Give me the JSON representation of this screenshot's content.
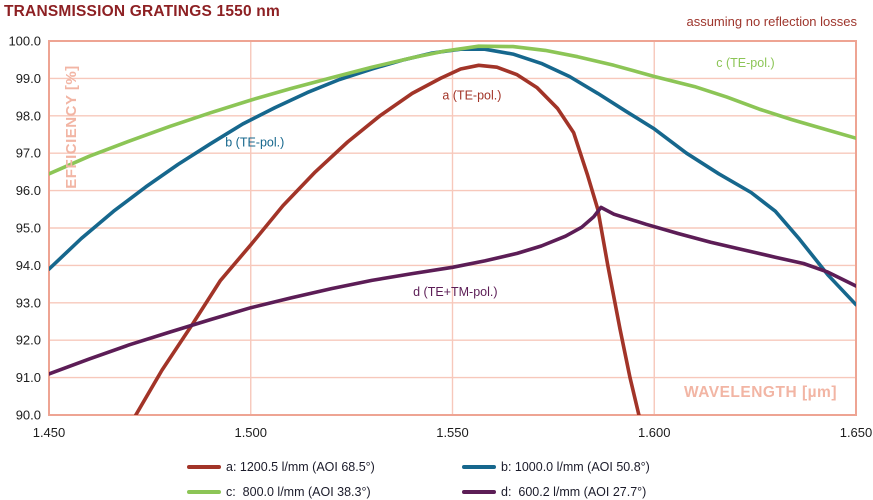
{
  "header": {
    "title": "TRANSMISSION GRATINGS 1550 nm",
    "subtitle": "assuming no reflection losses"
  },
  "chart_data": {
    "type": "line",
    "title": "TRANSMISSION GRATINGS 1550 nm",
    "subtitle": "assuming no reflection losses",
    "xlabel": "WAVELENGTH [µm]",
    "ylabel": "EFFICIENCY [%]",
    "xlim": [
      1.45,
      1.65
    ],
    "ylim": [
      90.0,
      100.0
    ],
    "xticks": [
      1.45,
      1.5,
      1.55,
      1.6,
      1.65
    ],
    "xtick_labels": [
      "1.450",
      "1.500",
      "1.550",
      "1.600",
      "1.650"
    ],
    "yticks": [
      90,
      91,
      92,
      93,
      94,
      95,
      96,
      97,
      98,
      99,
      100
    ],
    "ytick_labels": [
      "90.0",
      "91.0",
      "92.0",
      "93.0",
      "94.0",
      "95.0",
      "96.0",
      "97.0",
      "98.0",
      "99.0",
      "100.0"
    ],
    "grid": true,
    "legend_position": "bottom",
    "colors": {
      "plot_border": "#eea493",
      "grid": "#f7c8bb",
      "tick_text": "#1d1d1d",
      "axis_title": "#f2b5a4"
    },
    "series": [
      {
        "id": "a",
        "name": "a: 1200.5 l/mm (AOI 68.5°)",
        "curve_label": "a (TE-pol.)",
        "color": "#a23428",
        "label_pos": [
          1.5548,
          98.55
        ],
        "points": [
          [
            1.4715,
            90.0
          ],
          [
            1.478,
            91.2
          ],
          [
            1.4857,
            92.45
          ],
          [
            1.4925,
            93.6
          ],
          [
            1.5,
            94.55
          ],
          [
            1.508,
            95.6
          ],
          [
            1.516,
            96.5
          ],
          [
            1.524,
            97.3
          ],
          [
            1.532,
            98.0
          ],
          [
            1.54,
            98.6
          ],
          [
            1.547,
            99.0
          ],
          [
            1.552,
            99.25
          ],
          [
            1.5565,
            99.35
          ],
          [
            1.561,
            99.3
          ],
          [
            1.566,
            99.1
          ],
          [
            1.571,
            98.75
          ],
          [
            1.576,
            98.2
          ],
          [
            1.58,
            97.55
          ],
          [
            1.5835,
            96.4
          ],
          [
            1.586,
            95.5
          ],
          [
            1.5885,
            94.0
          ],
          [
            1.5915,
            92.3
          ],
          [
            1.594,
            91.0
          ],
          [
            1.5962,
            90.0
          ],
          [
            1.597,
            89.4
          ]
        ]
      },
      {
        "id": "b",
        "name": "b: 1000.0 l/mm (AOI 50.8°)",
        "curve_label": "b (TE-pol.)",
        "color": "#16678d",
        "label_pos": [
          1.501,
          97.3
        ],
        "points": [
          [
            1.45,
            93.9
          ],
          [
            1.458,
            94.72
          ],
          [
            1.466,
            95.45
          ],
          [
            1.474,
            96.1
          ],
          [
            1.482,
            96.7
          ],
          [
            1.49,
            97.25
          ],
          [
            1.498,
            97.78
          ],
          [
            1.506,
            98.22
          ],
          [
            1.514,
            98.62
          ],
          [
            1.522,
            98.97
          ],
          [
            1.53,
            99.25
          ],
          [
            1.538,
            99.5
          ],
          [
            1.545,
            99.68
          ],
          [
            1.552,
            99.78
          ],
          [
            1.558,
            99.78
          ],
          [
            1.565,
            99.65
          ],
          [
            1.572,
            99.4
          ],
          [
            1.579,
            99.05
          ],
          [
            1.586,
            98.6
          ],
          [
            1.593,
            98.12
          ],
          [
            1.6,
            97.65
          ],
          [
            1.608,
            97.0
          ],
          [
            1.616,
            96.45
          ],
          [
            1.624,
            95.95
          ],
          [
            1.63,
            95.45
          ],
          [
            1.636,
            94.7
          ],
          [
            1.643,
            93.75
          ],
          [
            1.65,
            92.95
          ]
        ]
      },
      {
        "id": "c",
        "name": "c:  800.0 l/mm (AOI 38.3°)",
        "curve_label": "c (TE-pol.)",
        "color": "#8cc556",
        "label_pos": [
          1.6226,
          99.42
        ],
        "points": [
          [
            1.45,
            96.45
          ],
          [
            1.46,
            96.92
          ],
          [
            1.47,
            97.33
          ],
          [
            1.48,
            97.72
          ],
          [
            1.49,
            98.08
          ],
          [
            1.5,
            98.42
          ],
          [
            1.51,
            98.73
          ],
          [
            1.52,
            99.02
          ],
          [
            1.53,
            99.3
          ],
          [
            1.54,
            99.55
          ],
          [
            1.548,
            99.73
          ],
          [
            1.5565,
            99.86
          ],
          [
            1.565,
            99.85
          ],
          [
            1.573,
            99.75
          ],
          [
            1.581,
            99.58
          ],
          [
            1.59,
            99.35
          ],
          [
            1.6,
            99.05
          ],
          [
            1.61,
            98.78
          ],
          [
            1.618,
            98.5
          ],
          [
            1.626,
            98.18
          ],
          [
            1.634,
            97.9
          ],
          [
            1.642,
            97.65
          ],
          [
            1.65,
            97.4
          ]
        ]
      },
      {
        "id": "d",
        "name": "d:  600.2 l/mm (AOI 27.7°)",
        "curve_label": "d (TE+TM-pol.)",
        "color": "#5c1d56",
        "label_pos": [
          1.5507,
          93.3
        ],
        "points": [
          [
            1.45,
            91.1
          ],
          [
            1.46,
            91.5
          ],
          [
            1.47,
            91.88
          ],
          [
            1.48,
            92.22
          ],
          [
            1.49,
            92.55
          ],
          [
            1.5,
            92.87
          ],
          [
            1.51,
            93.13
          ],
          [
            1.52,
            93.38
          ],
          [
            1.53,
            93.6
          ],
          [
            1.54,
            93.78
          ],
          [
            1.55,
            93.95
          ],
          [
            1.558,
            94.12
          ],
          [
            1.566,
            94.32
          ],
          [
            1.572,
            94.52
          ],
          [
            1.578,
            94.78
          ],
          [
            1.582,
            95.02
          ],
          [
            1.585,
            95.3
          ],
          [
            1.5868,
            95.55
          ],
          [
            1.59,
            95.37
          ],
          [
            1.598,
            95.1
          ],
          [
            1.606,
            94.85
          ],
          [
            1.614,
            94.62
          ],
          [
            1.622,
            94.42
          ],
          [
            1.63,
            94.22
          ],
          [
            1.637,
            94.05
          ],
          [
            1.643,
            93.82
          ],
          [
            1.65,
            93.45
          ]
        ]
      }
    ]
  }
}
